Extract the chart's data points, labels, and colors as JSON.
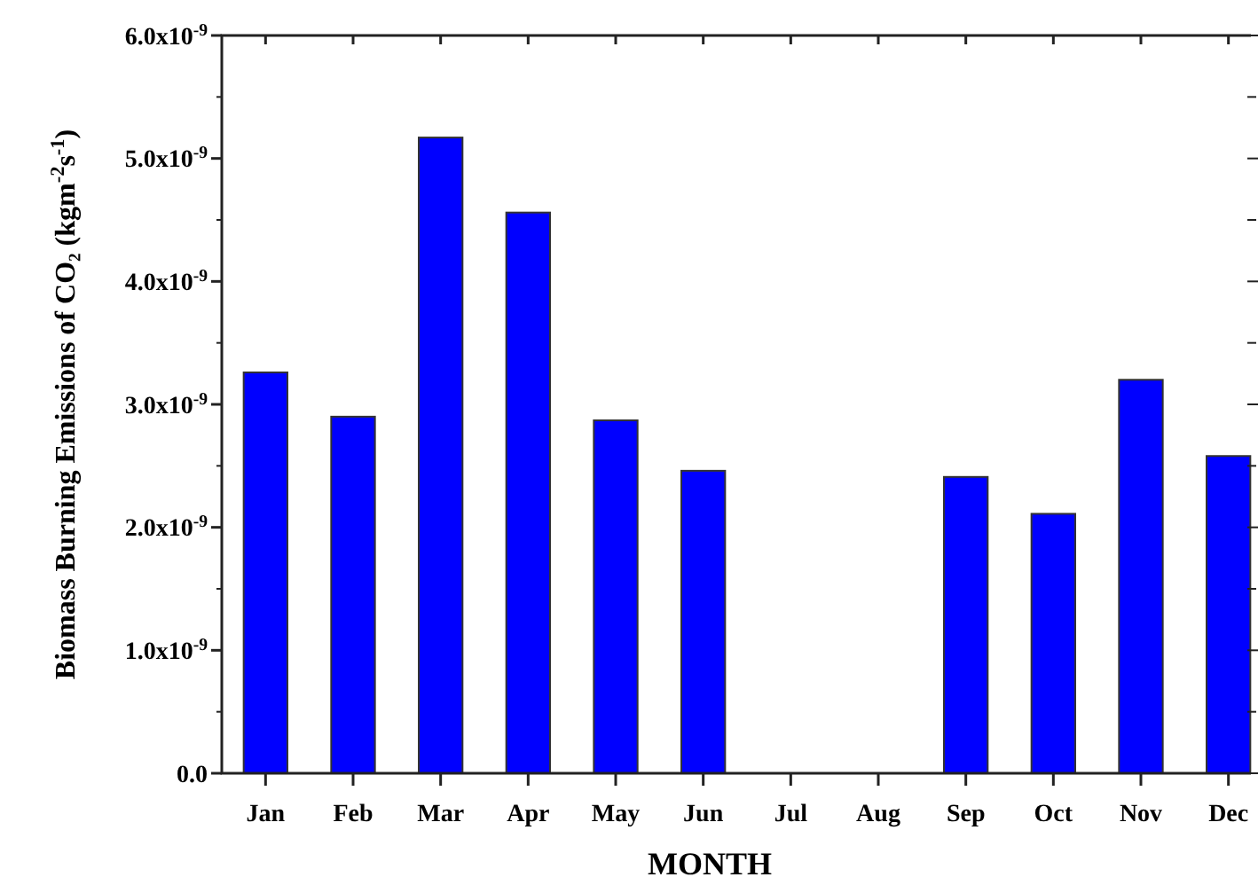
{
  "chart_data": {
    "type": "bar",
    "xlabel": "MONTH",
    "ylabel": "Biomass Burning Emissions of CO₂ (kgm$^{-2}$s$^{-1}$)",
    "categories": [
      "Jan",
      "Feb",
      "Mar",
      "Apr",
      "May",
      "Jun",
      "Jul",
      "Aug",
      "Sep",
      "Oct",
      "Nov",
      "Dec"
    ],
    "values": [
      3.26e-09,
      2.9e-09,
      5.17e-09,
      4.56e-09,
      2.87e-09,
      2.46e-09,
      null,
      null,
      2.41e-09,
      2.11e-09,
      3.2e-09,
      2.58e-09
    ],
    "color": "#0000ff",
    "ylim": [
      0,
      6e-09
    ],
    "yticks": [
      {
        "value": 0,
        "label": "0.0"
      },
      {
        "value": 1e-09,
        "label": "1.0x10$^{-9}$"
      },
      {
        "value": 2e-09,
        "label": "2.0x10$^{-9}$"
      },
      {
        "value": 3e-09,
        "label": "3.0x10$^{-9}$"
      },
      {
        "value": 4e-09,
        "label": "4.0x10$^{-9}$"
      },
      {
        "value": 5e-09,
        "label": "5.0x10$^{-9}$"
      },
      {
        "value": 6e-09,
        "label": "6.0x10$^{-9}$"
      }
    ],
    "grid": false
  }
}
